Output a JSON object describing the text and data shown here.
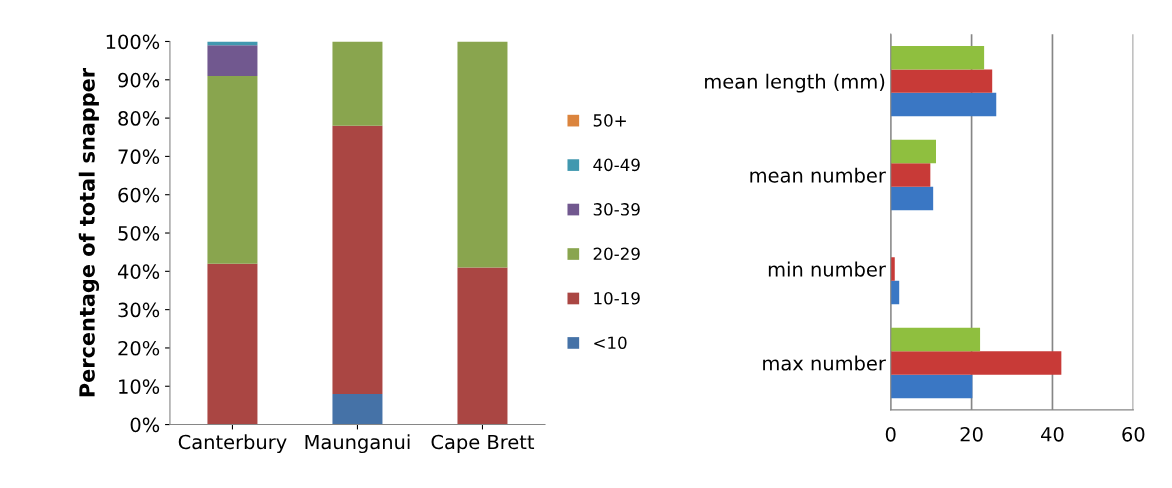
{
  "chart_data": [
    {
      "type": "bar",
      "stacked": true,
      "ylabel": "Percentage of total snapper",
      "categories": [
        "Canterbury",
        "Maunganui",
        "Cape Brett"
      ],
      "series": [
        {
          "name": "<10",
          "color": "#4572a7",
          "values": [
            0,
            8,
            0
          ]
        },
        {
          "name": "10-19",
          "color": "#aa4643",
          "values": [
            42,
            70,
            41
          ]
        },
        {
          "name": "20-29",
          "color": "#89a54e",
          "values": [
            49,
            22,
            59
          ]
        },
        {
          "name": "30-39",
          "color": "#71588f",
          "values": [
            8,
            0,
            0
          ]
        },
        {
          "name": "40-49",
          "color": "#4198af",
          "values": [
            1,
            0,
            0
          ]
        },
        {
          "name": "50+",
          "color": "#db843d",
          "values": [
            0,
            0,
            0
          ]
        }
      ],
      "ylim": [
        0,
        100
      ],
      "yticks": [
        {
          "value": 0,
          "label": "0%"
        },
        {
          "value": 10,
          "label": "10%"
        },
        {
          "value": 20,
          "label": "20%"
        },
        {
          "value": 30,
          "label": "30%"
        },
        {
          "value": 40,
          "label": "40%"
        },
        {
          "value": 50,
          "label": "50%"
        },
        {
          "value": 60,
          "label": "60%"
        },
        {
          "value": 70,
          "label": "70%"
        },
        {
          "value": 80,
          "label": "80%"
        },
        {
          "value": 90,
          "label": "90%"
        },
        {
          "value": 100,
          "label": "100%"
        }
      ],
      "grid": false,
      "legend": "right"
    },
    {
      "type": "bar",
      "orientation": "horizontal",
      "categories": [
        "mean length (mm)",
        "mean number",
        "min number",
        "max number"
      ],
      "series": [
        {
          "color": "#3a77c4",
          "values": [
            26.1,
            10.5,
            2.1,
            20.2
          ]
        },
        {
          "color": "#c83a37",
          "values": [
            25.1,
            9.8,
            1.0,
            42.2
          ]
        },
        {
          "color": "#8fbf3f",
          "values": [
            23.1,
            11.2,
            0,
            22.1
          ]
        }
      ],
      "xlim": [
        0,
        60
      ],
      "xticks": [
        0,
        20,
        40,
        60
      ],
      "grid": "x",
      "legend": false
    }
  ]
}
